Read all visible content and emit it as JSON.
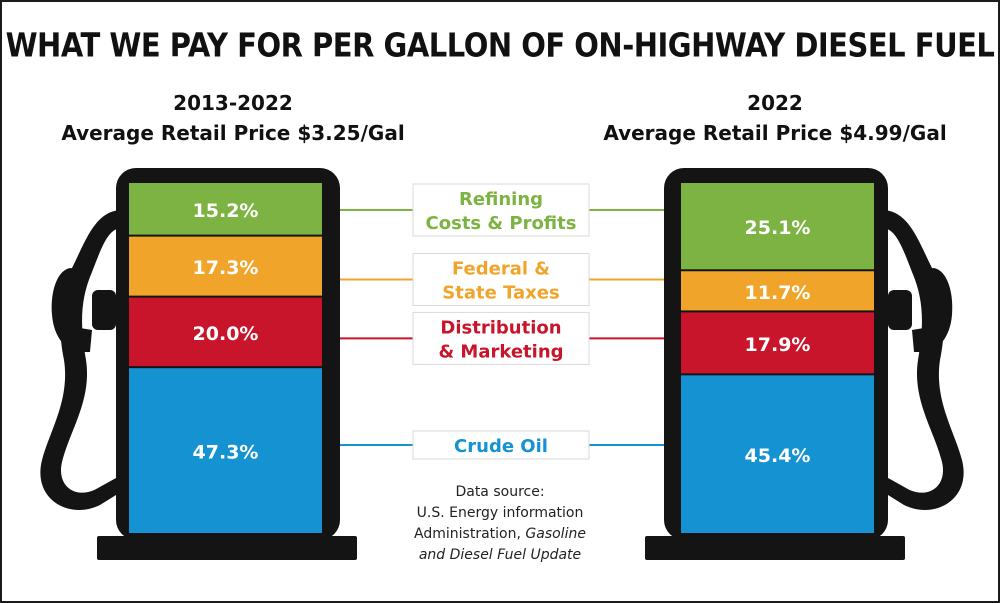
{
  "title": "WHAT WE PAY FOR PER GALLON OF ON-HIGHWAY DIESEL FUEL",
  "left": {
    "period": "2013-2022",
    "price_line": "Average Retail Price $3.25/Gal"
  },
  "right": {
    "period": "2022",
    "price_line": "Average Retail Price $4.99/Gal"
  },
  "source": {
    "line1": "Data source:",
    "line2": "U.S. Energy information",
    "line3_plain": "Administration, ",
    "line3_italic": "Gasoline",
    "line4_italic": "and Diesel Fuel Update"
  },
  "colors": {
    "refining": "#7cb342",
    "taxes": "#f0a42a",
    "distribution": "#c8152b",
    "crude": "#1592d1",
    "pump": "#141414"
  },
  "chart_data": {
    "type": "bar",
    "stacked": true,
    "unit": "%",
    "categories": [
      "2013-2022",
      "2022"
    ],
    "series": [
      {
        "name": "Refining Costs & Profits",
        "label_lines": [
          "Refining",
          "Costs & Profits"
        ],
        "key": "refining",
        "values": [
          15.2,
          25.1
        ],
        "labels": [
          "15.2%",
          "25.1%"
        ]
      },
      {
        "name": "Federal & State Taxes",
        "label_lines": [
          "Federal &",
          "State Taxes"
        ],
        "key": "taxes",
        "values": [
          17.3,
          11.7
        ],
        "labels": [
          "17.3%",
          "11.7%"
        ]
      },
      {
        "name": "Distribution & Marketing",
        "label_lines": [
          "Distribution",
          "& Marketing"
        ],
        "key": "distribution",
        "values": [
          20.0,
          17.9
        ],
        "labels": [
          "20.0%",
          "17.9%"
        ]
      },
      {
        "name": "Crude Oil",
        "label_lines": [
          "Crude Oil"
        ],
        "key": "crude",
        "values": [
          47.3,
          45.4
        ],
        "labels": [
          "47.3%",
          "45.4%"
        ]
      }
    ]
  }
}
